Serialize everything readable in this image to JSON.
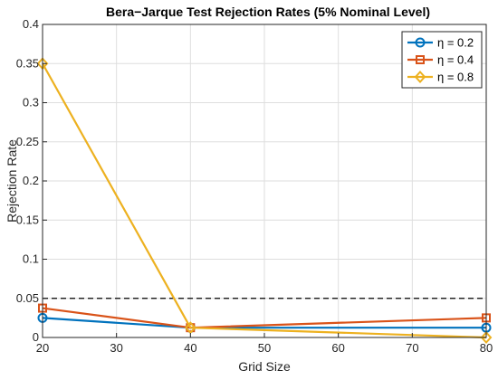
{
  "chart_data": {
    "type": "line",
    "title": "Bera−Jarque Test Rejection Rates (5% Nominal Level)",
    "xlabel": "Grid Size",
    "ylabel": "Rejection Rate",
    "xlim": [
      20,
      80
    ],
    "ylim": [
      0,
      0.4
    ],
    "xticks": [
      20,
      30,
      40,
      50,
      60,
      70,
      80
    ],
    "yticks": [
      0,
      0.05,
      0.1,
      0.15,
      0.2,
      0.25,
      0.3,
      0.35,
      0.4
    ],
    "xtick_labels": [
      "20",
      "30",
      "40",
      "50",
      "60",
      "70",
      "80"
    ],
    "ytick_labels": [
      "0",
      "0.05",
      "0.1",
      "0.15",
      "0.2",
      "0.25",
      "0.3",
      "0.35",
      "0.4"
    ],
    "grid": true,
    "legend_position": "top-right",
    "x": [
      20,
      40,
      80
    ],
    "series": [
      {
        "name": "η = 0.2",
        "values": [
          0.025,
          0.0125,
          0.0125
        ],
        "color": "#0072BD",
        "marker": "circle"
      },
      {
        "name": "η = 0.4",
        "values": [
          0.0375,
          0.0125,
          0.025
        ],
        "color": "#D95319",
        "marker": "square"
      },
      {
        "name": "η = 0.8",
        "values": [
          0.35,
          0.0125,
          0.0
        ],
        "color": "#EDB120",
        "marker": "diamond"
      }
    ],
    "reference_line": {
      "y": 0.05,
      "style": "dashed",
      "color": "#000000"
    }
  }
}
